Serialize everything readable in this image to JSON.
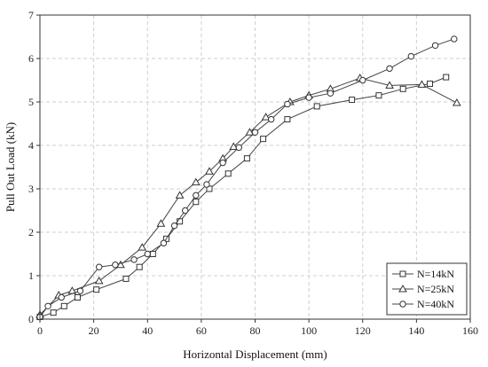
{
  "chart_data": {
    "type": "line",
    "title": "",
    "xlabel": "Horizontal Displacement (mm)",
    "ylabel": "Pull Out Load (kN)",
    "xlim": [
      0,
      160
    ],
    "ylim": [
      0,
      7
    ],
    "xticks": [
      0,
      20,
      40,
      60,
      80,
      100,
      120,
      140,
      160
    ],
    "yticks": [
      0,
      1,
      2,
      3,
      4,
      5,
      6,
      7
    ],
    "grid": true,
    "legend_position": "bottom-right",
    "series": [
      {
        "name": "N=14kN",
        "marker": "square",
        "points": [
          [
            0,
            0.05
          ],
          [
            5,
            0.15
          ],
          [
            9,
            0.3
          ],
          [
            14,
            0.5
          ],
          [
            21,
            0.68
          ],
          [
            32,
            0.93
          ],
          [
            37,
            1.2
          ],
          [
            42,
            1.5
          ],
          [
            47,
            1.85
          ],
          [
            52,
            2.25
          ],
          [
            58,
            2.7
          ],
          [
            63,
            3.0
          ],
          [
            70,
            3.35
          ],
          [
            77,
            3.7
          ],
          [
            83,
            4.15
          ],
          [
            92,
            4.6
          ],
          [
            103,
            4.9
          ],
          [
            116,
            5.05
          ],
          [
            126,
            5.15
          ],
          [
            135,
            5.3
          ],
          [
            145,
            5.42
          ],
          [
            151,
            5.57
          ]
        ]
      },
      {
        "name": "N=25kN",
        "marker": "triangle",
        "points": [
          [
            0,
            0.1
          ],
          [
            7,
            0.55
          ],
          [
            12,
            0.65
          ],
          [
            22,
            0.88
          ],
          [
            30,
            1.25
          ],
          [
            38,
            1.65
          ],
          [
            45,
            2.2
          ],
          [
            52,
            2.85
          ],
          [
            58,
            3.15
          ],
          [
            63,
            3.4
          ],
          [
            68,
            3.7
          ],
          [
            72,
            3.97
          ],
          [
            78,
            4.3
          ],
          [
            84,
            4.65
          ],
          [
            93,
            5.0
          ],
          [
            100,
            5.15
          ],
          [
            108,
            5.3
          ],
          [
            119,
            5.55
          ],
          [
            130,
            5.38
          ],
          [
            142,
            5.4
          ],
          [
            155,
            4.98
          ]
        ]
      },
      {
        "name": "N=40kN",
        "marker": "circle",
        "points": [
          [
            0,
            0.05
          ],
          [
            3,
            0.3
          ],
          [
            8,
            0.5
          ],
          [
            15,
            0.65
          ],
          [
            22,
            1.2
          ],
          [
            28,
            1.25
          ],
          [
            35,
            1.37
          ],
          [
            40,
            1.5
          ],
          [
            46,
            1.75
          ],
          [
            50,
            2.15
          ],
          [
            54,
            2.5
          ],
          [
            58,
            2.85
          ],
          [
            62,
            3.1
          ],
          [
            68,
            3.6
          ],
          [
            74,
            3.95
          ],
          [
            80,
            4.3
          ],
          [
            86,
            4.6
          ],
          [
            92,
            4.95
          ],
          [
            100,
            5.1
          ],
          [
            108,
            5.2
          ],
          [
            120,
            5.5
          ],
          [
            130,
            5.77
          ],
          [
            138,
            6.05
          ],
          [
            147,
            6.3
          ],
          [
            154,
            6.45
          ]
        ]
      }
    ]
  }
}
